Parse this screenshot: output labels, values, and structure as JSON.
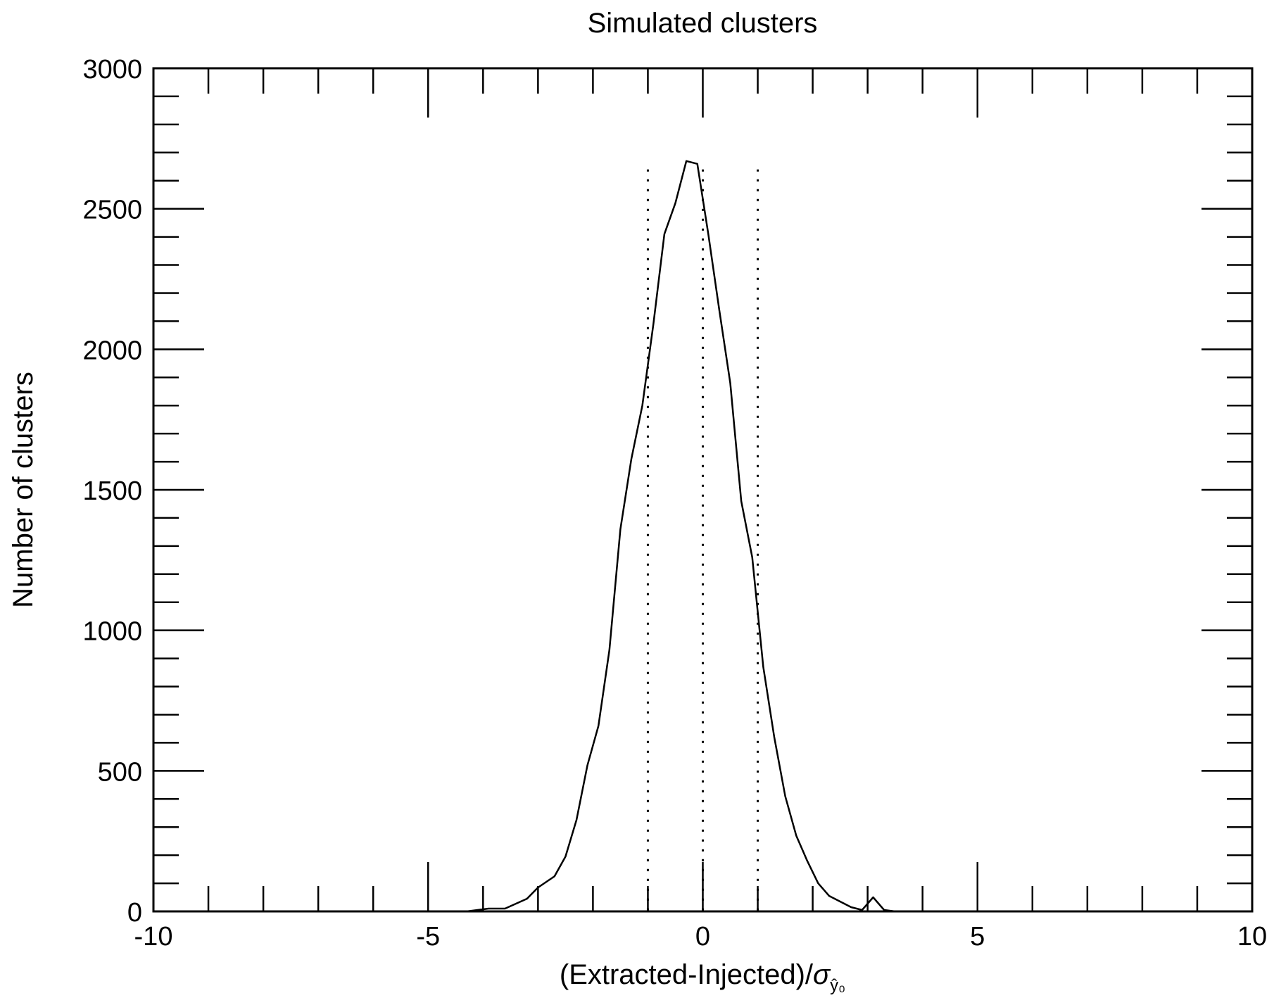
{
  "chart_data": {
    "type": "line",
    "title": "Simulated clusters",
    "xlabel": "(Extracted-Injected)/",
    "xlabel_symbol": "σ",
    "xlabel_subscript": "ŷ₀",
    "ylabel": "Number of clusters",
    "xlim": [
      -10,
      10
    ],
    "ylim": [
      0,
      3000
    ],
    "x_ticks": [
      -10,
      -5,
      0,
      5,
      10
    ],
    "x_tick_labels": [
      "-10",
      "-5",
      "0",
      "5",
      "10"
    ],
    "y_ticks": [
      0,
      500,
      1000,
      1500,
      2000,
      2500,
      3000
    ],
    "y_tick_labels": [
      "0",
      "500",
      "1000",
      "1500",
      "2000",
      "2500",
      "3000"
    ],
    "grid": false,
    "series": [
      {
        "x": [
          -4.3,
          -4.1,
          -3.9,
          -3.6,
          -3.2,
          -3.0,
          -2.7,
          -2.5,
          -2.3,
          -2.1,
          -1.9,
          -1.7,
          -1.5,
          -1.3,
          -1.1,
          -0.9,
          -0.7,
          -0.5,
          -0.3,
          -0.1,
          0.1,
          0.3,
          0.5,
          0.7,
          0.9,
          1.1,
          1.3,
          1.5,
          1.7,
          1.9,
          2.1,
          2.3,
          2.5,
          2.7,
          2.9,
          3.1,
          3.3,
          3.5
        ],
        "y": [
          0,
          5,
          10,
          10,
          45,
          85,
          125,
          195,
          325,
          520,
          660,
          930,
          1360,
          1610,
          1800,
          2090,
          2410,
          2520,
          2670,
          2660,
          2410,
          2140,
          1880,
          1460,
          1260,
          870,
          620,
          410,
          270,
          180,
          100,
          55,
          35,
          15,
          5,
          50,
          5,
          0
        ]
      }
    ],
    "vlines": [
      -1.0,
      0.0,
      1.0
    ]
  }
}
